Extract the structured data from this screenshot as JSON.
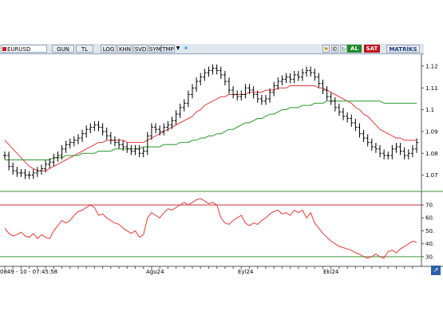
{
  "toolbar": {
    "symbol": "EURUSD",
    "buttons": [
      "GUN",
      "TL",
      "LOG",
      "KHN",
      "SVD",
      "SYM",
      "TMP"
    ],
    "dropdown_icon": "chevron-down-icon",
    "twitter_icon": "bird-icon",
    "buy_label": "AL",
    "sell_label": "SAT",
    "matrix_label": "MATRİKS",
    "buy_color": "#1f8a2b",
    "sell_color": "#c0121b"
  },
  "status": {
    "text": "0849 - 10 - 07:45:58",
    "dates": [
      "Ağu24",
      "Eyl24",
      "Eki24"
    ]
  },
  "chart_data": [
    {
      "type": "line",
      "subtype": "ohlc",
      "series": [
        {
          "name": "",
          "role": "price_close",
          "values": [
            1.079,
            1.074,
            1.072,
            1.071,
            1.071,
            1.07,
            1.07,
            1.071,
            1.072,
            1.073,
            1.075,
            1.076,
            1.078,
            1.079,
            1.082,
            1.084,
            1.085,
            1.086,
            1.087,
            1.089,
            1.091,
            1.092,
            1.093,
            1.092,
            1.09,
            1.088,
            1.086,
            1.085,
            1.084,
            1.083,
            1.082,
            1.081,
            1.082,
            1.08,
            1.081,
            1.088,
            1.092,
            1.091,
            1.09,
            1.092,
            1.093,
            1.095,
            1.098,
            1.101,
            1.103,
            1.107,
            1.11,
            1.113,
            1.115,
            1.117,
            1.118,
            1.119,
            1.118,
            1.116,
            1.113,
            1.109,
            1.107,
            1.106,
            1.107,
            1.11,
            1.109,
            1.107,
            1.105,
            1.104,
            1.105,
            1.108,
            1.111,
            1.113,
            1.114,
            1.115,
            1.114,
            1.116,
            1.115,
            1.117,
            1.118,
            1.117,
            1.115,
            1.112,
            1.109,
            1.106,
            1.104,
            1.101,
            1.099,
            1.097,
            1.096,
            1.094,
            1.092,
            1.089,
            1.087,
            1.085,
            1.083,
            1.082,
            1.08,
            1.079,
            1.079,
            1.082,
            1.083,
            1.081,
            1.079,
            1.08,
            1.082,
            1.085
          ]
        },
        {
          "name": "",
          "role": "moving_average_fast",
          "color": "#e23b3b",
          "values": [
            1.086,
            1.084,
            1.082,
            1.08,
            1.078,
            1.076,
            1.074,
            1.073,
            1.072,
            1.072,
            1.072,
            1.073,
            1.074,
            1.075,
            1.076,
            1.077,
            1.078,
            1.079,
            1.08,
            1.081,
            1.082,
            1.083,
            1.084,
            1.085,
            1.085,
            1.086,
            1.086,
            1.086,
            1.086,
            1.086,
            1.085,
            1.085,
            1.085,
            1.085,
            1.085,
            1.086,
            1.087,
            1.088,
            1.089,
            1.09,
            1.091,
            1.092,
            1.093,
            1.094,
            1.095,
            1.096,
            1.097,
            1.099,
            1.1,
            1.102,
            1.103,
            1.104,
            1.105,
            1.106,
            1.106,
            1.107,
            1.107,
            1.107,
            1.107,
            1.107,
            1.108,
            1.108,
            1.108,
            1.108,
            1.109,
            1.109,
            1.109,
            1.11,
            1.11,
            1.11,
            1.111,
            1.111,
            1.111,
            1.111,
            1.111,
            1.111,
            1.111,
            1.11,
            1.11,
            1.109,
            1.108,
            1.107,
            1.106,
            1.105,
            1.104,
            1.103,
            1.101,
            1.1,
            1.098,
            1.097,
            1.095,
            1.093,
            1.091,
            1.09,
            1.089,
            1.088,
            1.087,
            1.087,
            1.086,
            1.086,
            1.086,
            1.086
          ]
        },
        {
          "name": "",
          "role": "moving_average_slow",
          "color": "#2a9a2a",
          "values": [
            1.077,
            1.077,
            1.077,
            1.077,
            1.077,
            1.077,
            1.077,
            1.077,
            1.077,
            1.077,
            1.077,
            1.077,
            1.078,
            1.078,
            1.078,
            1.079,
            1.079,
            1.079,
            1.079,
            1.08,
            1.08,
            1.08,
            1.08,
            1.081,
            1.081,
            1.081,
            1.081,
            1.082,
            1.082,
            1.082,
            1.082,
            1.082,
            1.082,
            1.082,
            1.083,
            1.083,
            1.083,
            1.083,
            1.083,
            1.084,
            1.084,
            1.084,
            1.084,
            1.085,
            1.085,
            1.085,
            1.086,
            1.086,
            1.087,
            1.087,
            1.088,
            1.088,
            1.089,
            1.089,
            1.09,
            1.091,
            1.091,
            1.092,
            1.093,
            1.094,
            1.094,
            1.095,
            1.096,
            1.096,
            1.097,
            1.098,
            1.098,
            1.099,
            1.1,
            1.1,
            1.101,
            1.101,
            1.101,
            1.102,
            1.102,
            1.102,
            1.103,
            1.103,
            1.103,
            1.104,
            1.104,
            1.104,
            1.104,
            1.104,
            1.104,
            1.104,
            1.104,
            1.104,
            1.104,
            1.104,
            1.104,
            1.104,
            1.104,
            1.103,
            1.103,
            1.103,
            1.103,
            1.103,
            1.103,
            1.103,
            1.103,
            1.103
          ]
        }
      ],
      "y_ticks": [
        "1.12",
        "1.11",
        "1.1",
        "1.09",
        "1.08",
        "1.07"
      ],
      "ylim": [
        1.064,
        1.124
      ],
      "grid": false,
      "legend": "none"
    },
    {
      "type": "line",
      "subtype": "oscillator",
      "series": [
        {
          "name": "",
          "color": "#e23b3b",
          "values": [
            52,
            48,
            46,
            47,
            49,
            46,
            45,
            48,
            44,
            47,
            45,
            44,
            50,
            54,
            58,
            56,
            58,
            62,
            65,
            66,
            68,
            70,
            68,
            62,
            63,
            60,
            58,
            56,
            55,
            52,
            50,
            48,
            50,
            45,
            47,
            60,
            64,
            62,
            60,
            64,
            67,
            66,
            68,
            70,
            72,
            70,
            72,
            74,
            75,
            73,
            71,
            72,
            70,
            60,
            56,
            55,
            58,
            60,
            62,
            56,
            54,
            56,
            55,
            58,
            60,
            63,
            65,
            66,
            63,
            64,
            62,
            66,
            64,
            66,
            60,
            64,
            56,
            52,
            48,
            45,
            42,
            40,
            38,
            37,
            36,
            35,
            33,
            32,
            30,
            29,
            30,
            32,
            30,
            29,
            34,
            35,
            33,
            36,
            38,
            40,
            42,
            41
          ]
        }
      ],
      "y_ticks": [
        "70.",
        "60.",
        "50.",
        "40.",
        "30."
      ],
      "ylim": [
        25,
        78
      ],
      "reference_lines": [
        70,
        30
      ],
      "grid": false,
      "legend": "none"
    }
  ]
}
